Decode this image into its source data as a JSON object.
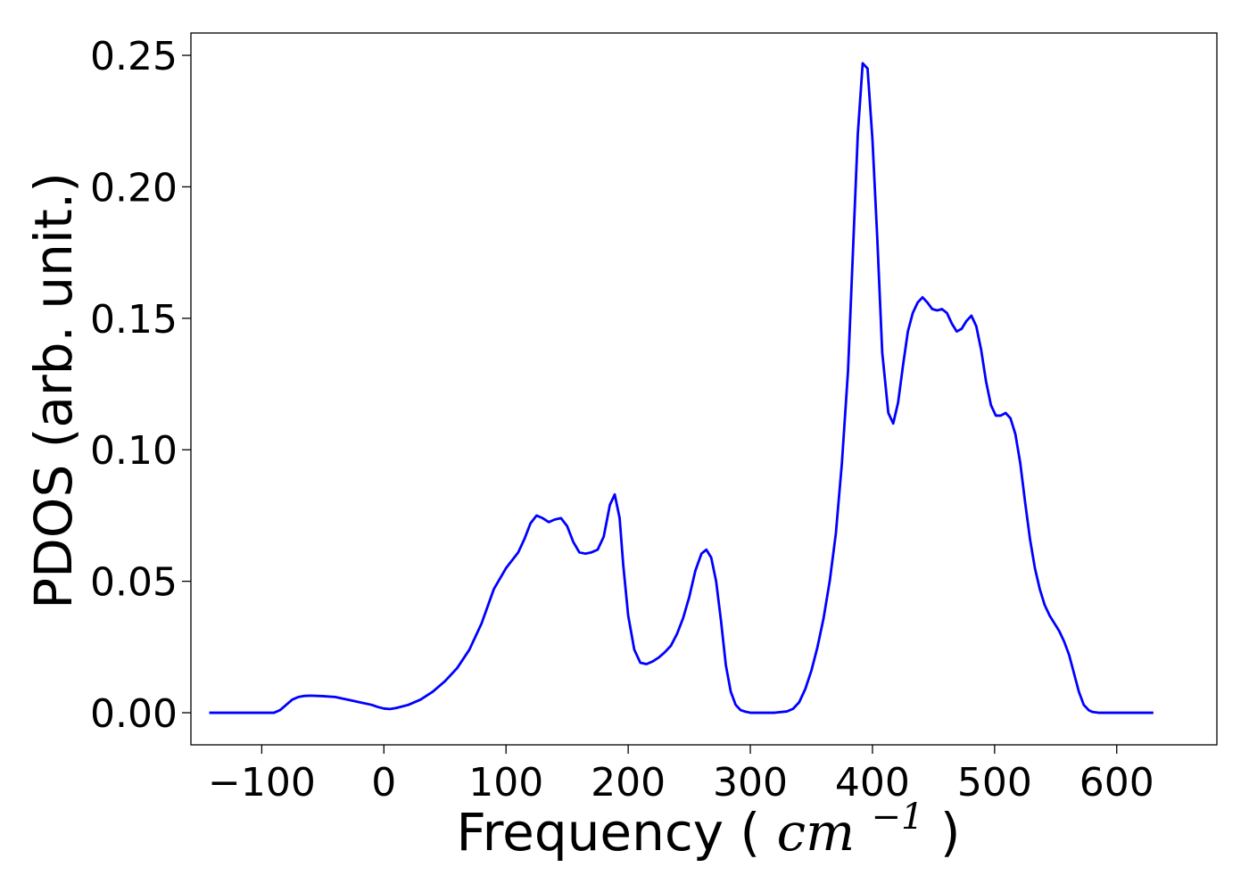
{
  "chart_data": {
    "type": "line",
    "title": "",
    "xlabel": "Frequency",
    "xlabel_unit": "cm",
    "xlabel_unit_exponent": "−1",
    "ylabel": "PDOS (arb. unit.)",
    "xlim": [
      -158,
      682
    ],
    "ylim": [
      -0.0122,
      0.2585
    ],
    "xticks": [
      -100,
      0,
      100,
      200,
      300,
      400,
      500,
      600
    ],
    "xtick_labels": [
      "−100",
      "0",
      "100",
      "200",
      "300",
      "400",
      "500",
      "600"
    ],
    "yticks": [
      0.0,
      0.05,
      0.1,
      0.15,
      0.2,
      0.25
    ],
    "ytick_labels": [
      "0.00",
      "0.05",
      "0.10",
      "0.15",
      "0.20",
      "0.25"
    ],
    "grid": false,
    "line_color": "#0000ff",
    "x": [
      -143,
      -100,
      -90,
      -85,
      -80,
      -75,
      -70,
      -65,
      -60,
      -50,
      -40,
      -30,
      -20,
      -10,
      -5,
      0,
      5,
      10,
      20,
      30,
      40,
      50,
      60,
      70,
      80,
      90,
      100,
      110,
      115,
      120,
      125,
      130,
      135,
      140,
      145,
      150,
      155,
      160,
      165,
      170,
      175,
      180,
      185,
      189,
      193,
      196,
      200,
      205,
      210,
      215,
      220,
      225,
      230,
      235,
      240,
      245,
      250,
      255,
      260,
      264,
      268,
      272,
      276,
      280,
      284,
      288,
      292,
      296,
      300,
      310,
      320,
      330,
      335,
      340,
      345,
      350,
      355,
      360,
      365,
      370,
      375,
      380,
      384,
      388,
      392,
      396,
      400,
      404,
      408,
      413,
      417,
      421,
      425,
      429,
      433,
      437,
      441,
      445,
      449,
      453,
      457,
      461,
      465,
      469,
      473,
      477,
      481,
      485,
      489,
      493,
      497,
      501,
      505,
      509,
      513,
      517,
      521,
      525,
      529,
      533,
      537,
      541,
      545,
      549,
      553,
      557,
      561,
      565,
      569,
      573,
      577,
      580,
      585,
      590,
      600,
      610,
      620,
      630
    ],
    "values": [
      0,
      0,
      0,
      0.001,
      0.003,
      0.005,
      0.006,
      0.0064,
      0.0065,
      0.0063,
      0.006,
      0.005,
      0.004,
      0.003,
      0.0022,
      0.0016,
      0.0014,
      0.0018,
      0.003,
      0.005,
      0.008,
      0.012,
      0.017,
      0.024,
      0.034,
      0.047,
      0.055,
      0.061,
      0.066,
      0.072,
      0.075,
      0.074,
      0.0725,
      0.0735,
      0.074,
      0.071,
      0.065,
      0.061,
      0.0605,
      0.061,
      0.062,
      0.067,
      0.079,
      0.083,
      0.074,
      0.056,
      0.037,
      0.024,
      0.019,
      0.0185,
      0.0195,
      0.021,
      0.023,
      0.0255,
      0.03,
      0.036,
      0.044,
      0.054,
      0.0605,
      0.062,
      0.059,
      0.05,
      0.035,
      0.018,
      0.008,
      0.003,
      0.001,
      0.0004,
      0,
      0,
      0,
      0.0005,
      0.0015,
      0.004,
      0.009,
      0.016,
      0.025,
      0.036,
      0.05,
      0.068,
      0.095,
      0.13,
      0.175,
      0.22,
      0.247,
      0.245,
      0.218,
      0.18,
      0.137,
      0.114,
      0.11,
      0.118,
      0.132,
      0.145,
      0.152,
      0.156,
      0.158,
      0.156,
      0.1535,
      0.153,
      0.1535,
      0.152,
      0.148,
      0.145,
      0.146,
      0.149,
      0.151,
      0.147,
      0.138,
      0.126,
      0.117,
      0.113,
      0.113,
      0.114,
      0.112,
      0.106,
      0.095,
      0.08,
      0.066,
      0.055,
      0.047,
      0.041,
      0.037,
      0.034,
      0.031,
      0.027,
      0.022,
      0.015,
      0.008,
      0.003,
      0.001,
      0.0003,
      0,
      0,
      0,
      0,
      0,
      0
    ]
  }
}
